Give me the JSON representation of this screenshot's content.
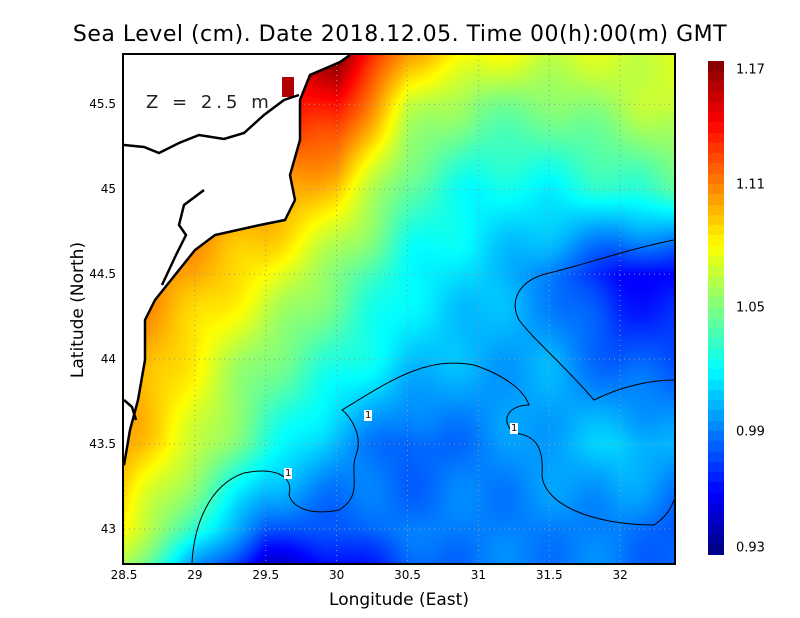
{
  "title": "Sea Level (cm). Date 2018.12.05. Time 00(h):00(m) GMT",
  "depth_label": "Z = 2.5 m",
  "contour_label": "1",
  "chart_data": {
    "type": "heatmap",
    "title": "Sea Level (cm). Date 2018.12.05. Time 00(h):00(m) GMT",
    "xlabel": "Longitude (East)",
    "ylabel": "Latitude (North)",
    "xlim": [
      28.5,
      32.38
    ],
    "ylim": [
      42.8,
      45.79
    ],
    "xticks": [
      "28.5",
      "29",
      "29.5",
      "30",
      "30.5",
      "31",
      "31.5",
      "32"
    ],
    "yticks": [
      "43",
      "43.5",
      "44",
      "44.5",
      "45",
      "45.5"
    ],
    "grid": true,
    "colorbar": {
      "min": 0.93,
      "max": 1.17,
      "ticks": [
        "1.17",
        "1.11",
        "1.05",
        "0.99",
        "0.93"
      ]
    },
    "contour_level": 1.0,
    "grid_lon": [
      28.5,
      29,
      29.5,
      30,
      30.5,
      31,
      31.5,
      32,
      32.4
    ],
    "grid_lat": [
      45.8,
      45.5,
      45.0,
      44.5,
      44.0,
      43.5,
      43.0,
      42.8
    ],
    "values": [
      [
        1.12,
        1.12,
        1.14,
        1.17,
        1.1,
        1.08,
        1.07,
        1.07,
        1.07
      ],
      [
        1.12,
        1.12,
        1.13,
        1.14,
        1.07,
        1.05,
        1.05,
        1.06,
        1.07
      ],
      [
        1.11,
        1.11,
        1.11,
        1.09,
        1.04,
        1.02,
        1.02,
        1.03,
        1.04
      ],
      [
        1.11,
        1.1,
        1.08,
        1.05,
        1.02,
        1.01,
        0.99,
        0.96,
        0.96
      ],
      [
        1.11,
        1.08,
        1.05,
        1.03,
        1.01,
        1.0,
        1.0,
        0.98,
        0.98
      ],
      [
        1.1,
        1.07,
        1.03,
        1.0,
        0.98,
        0.99,
        1.0,
        1.01,
        1.0
      ],
      [
        1.08,
        1.03,
        0.98,
        0.98,
        0.99,
        0.99,
        0.99,
        0.99,
        0.98
      ],
      [
        1.06,
        1.0,
        0.95,
        0.96,
        0.98,
        0.99,
        0.99,
        0.99,
        0.98
      ]
    ]
  }
}
